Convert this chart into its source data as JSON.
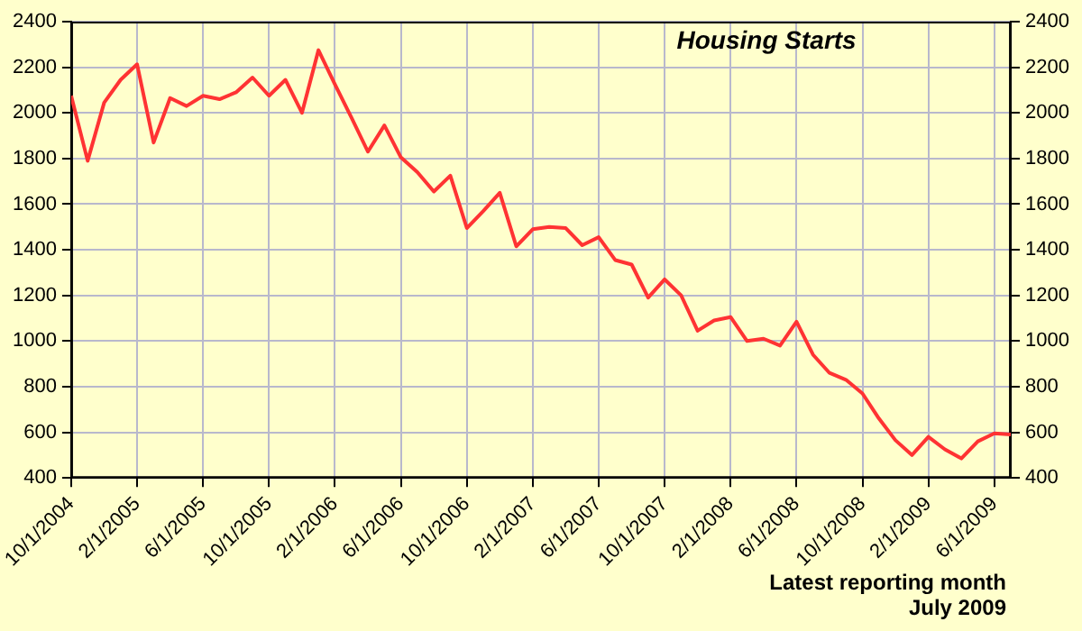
{
  "chart_data": {
    "type": "line",
    "title": "Housing Starts",
    "annotations": [
      "Latest reporting month",
      "July 2009"
    ],
    "x": [
      "2004-10",
      "2004-11",
      "2004-12",
      "2005-01",
      "2005-02",
      "2005-03",
      "2005-04",
      "2005-05",
      "2005-06",
      "2005-07",
      "2005-08",
      "2005-09",
      "2005-10",
      "2005-11",
      "2005-12",
      "2006-01",
      "2006-02",
      "2006-03",
      "2006-04",
      "2006-05",
      "2006-06",
      "2006-07",
      "2006-08",
      "2006-09",
      "2006-10",
      "2006-11",
      "2006-12",
      "2007-01",
      "2007-02",
      "2007-03",
      "2007-04",
      "2007-05",
      "2007-06",
      "2007-07",
      "2007-08",
      "2007-09",
      "2007-10",
      "2007-11",
      "2007-12",
      "2008-01",
      "2008-02",
      "2008-03",
      "2008-04",
      "2008-05",
      "2008-06",
      "2008-07",
      "2008-08",
      "2008-09",
      "2008-10",
      "2008-11",
      "2008-12",
      "2009-01",
      "2009-02",
      "2009-03",
      "2009-04",
      "2009-05",
      "2009-06",
      "2009-07"
    ],
    "series": [
      {
        "color": "#ff3333",
        "values": [
          2075,
          1790,
          2045,
          2145,
          2213,
          1870,
          2065,
          2030,
          2075,
          2060,
          2090,
          2155,
          2075,
          2145,
          2000,
          2275,
          2125,
          1980,
          1830,
          1945,
          1805,
          1740,
          1655,
          1725,
          1495,
          1570,
          1650,
          1415,
          1490,
          1500,
          1495,
          1420,
          1455,
          1355,
          1335,
          1190,
          1270,
          1200,
          1045,
          1090,
          1105,
          1000,
          1010,
          980,
          1085,
          940,
          860,
          830,
          770,
          660,
          565,
          500,
          580,
          525,
          485,
          560,
          595,
          590
        ]
      }
    ],
    "xlim": [
      "2004-10",
      "2009-07"
    ],
    "xticks": [
      {
        "value": "2004-10",
        "label": "10/1/2004"
      },
      {
        "value": "2005-02",
        "label": "2/1/2005"
      },
      {
        "value": "2005-06",
        "label": "6/1/2005"
      },
      {
        "value": "2005-10",
        "label": "10/1/2005"
      },
      {
        "value": "2006-02",
        "label": "2/1/2006"
      },
      {
        "value": "2006-06",
        "label": "6/1/2006"
      },
      {
        "value": "2006-10",
        "label": "10/1/2006"
      },
      {
        "value": "2007-02",
        "label": "2/1/2007"
      },
      {
        "value": "2007-06",
        "label": "6/1/2007"
      },
      {
        "value": "2007-10",
        "label": "10/1/2007"
      },
      {
        "value": "2008-02",
        "label": "2/1/2008"
      },
      {
        "value": "2008-06",
        "label": "6/1/2008"
      },
      {
        "value": "2008-10",
        "label": "10/1/2008"
      },
      {
        "value": "2009-02",
        "label": "2/1/2009"
      },
      {
        "value": "2009-06",
        "label": "6/1/2009"
      }
    ],
    "ylim": [
      400,
      2400
    ],
    "yticks": [
      400,
      600,
      800,
      1000,
      1200,
      1400,
      1600,
      1800,
      2000,
      2200,
      2400
    ],
    "y2lim": [
      400,
      2400
    ],
    "y2ticks": [
      400,
      600,
      800,
      1000,
      1200,
      1400,
      1600,
      1800,
      2000,
      2200,
      2400
    ],
    "grid": true,
    "legend": false,
    "marker": "none",
    "line_style": "solid"
  }
}
